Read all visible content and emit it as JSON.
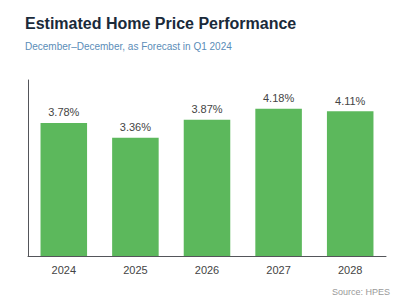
{
  "chart_data": {
    "type": "bar",
    "title": "Estimated Home Price Performance",
    "subtitle": "December–December, as Forecast in Q1 2024",
    "annotations": [
      "Source: HPES"
    ],
    "categories": [
      "2024",
      "2025",
      "2026",
      "2027",
      "2028"
    ],
    "values": [
      3.78,
      3.36,
      3.87,
      4.18,
      4.11
    ],
    "value_labels": [
      "3.78%",
      "3.36%",
      "3.87%",
      "4.18%",
      "4.11%"
    ],
    "data_labels": true,
    "color": "#5cb85c",
    "ylim": [
      0,
      5.0
    ],
    "tick_labels": "x",
    "grid": false
  }
}
